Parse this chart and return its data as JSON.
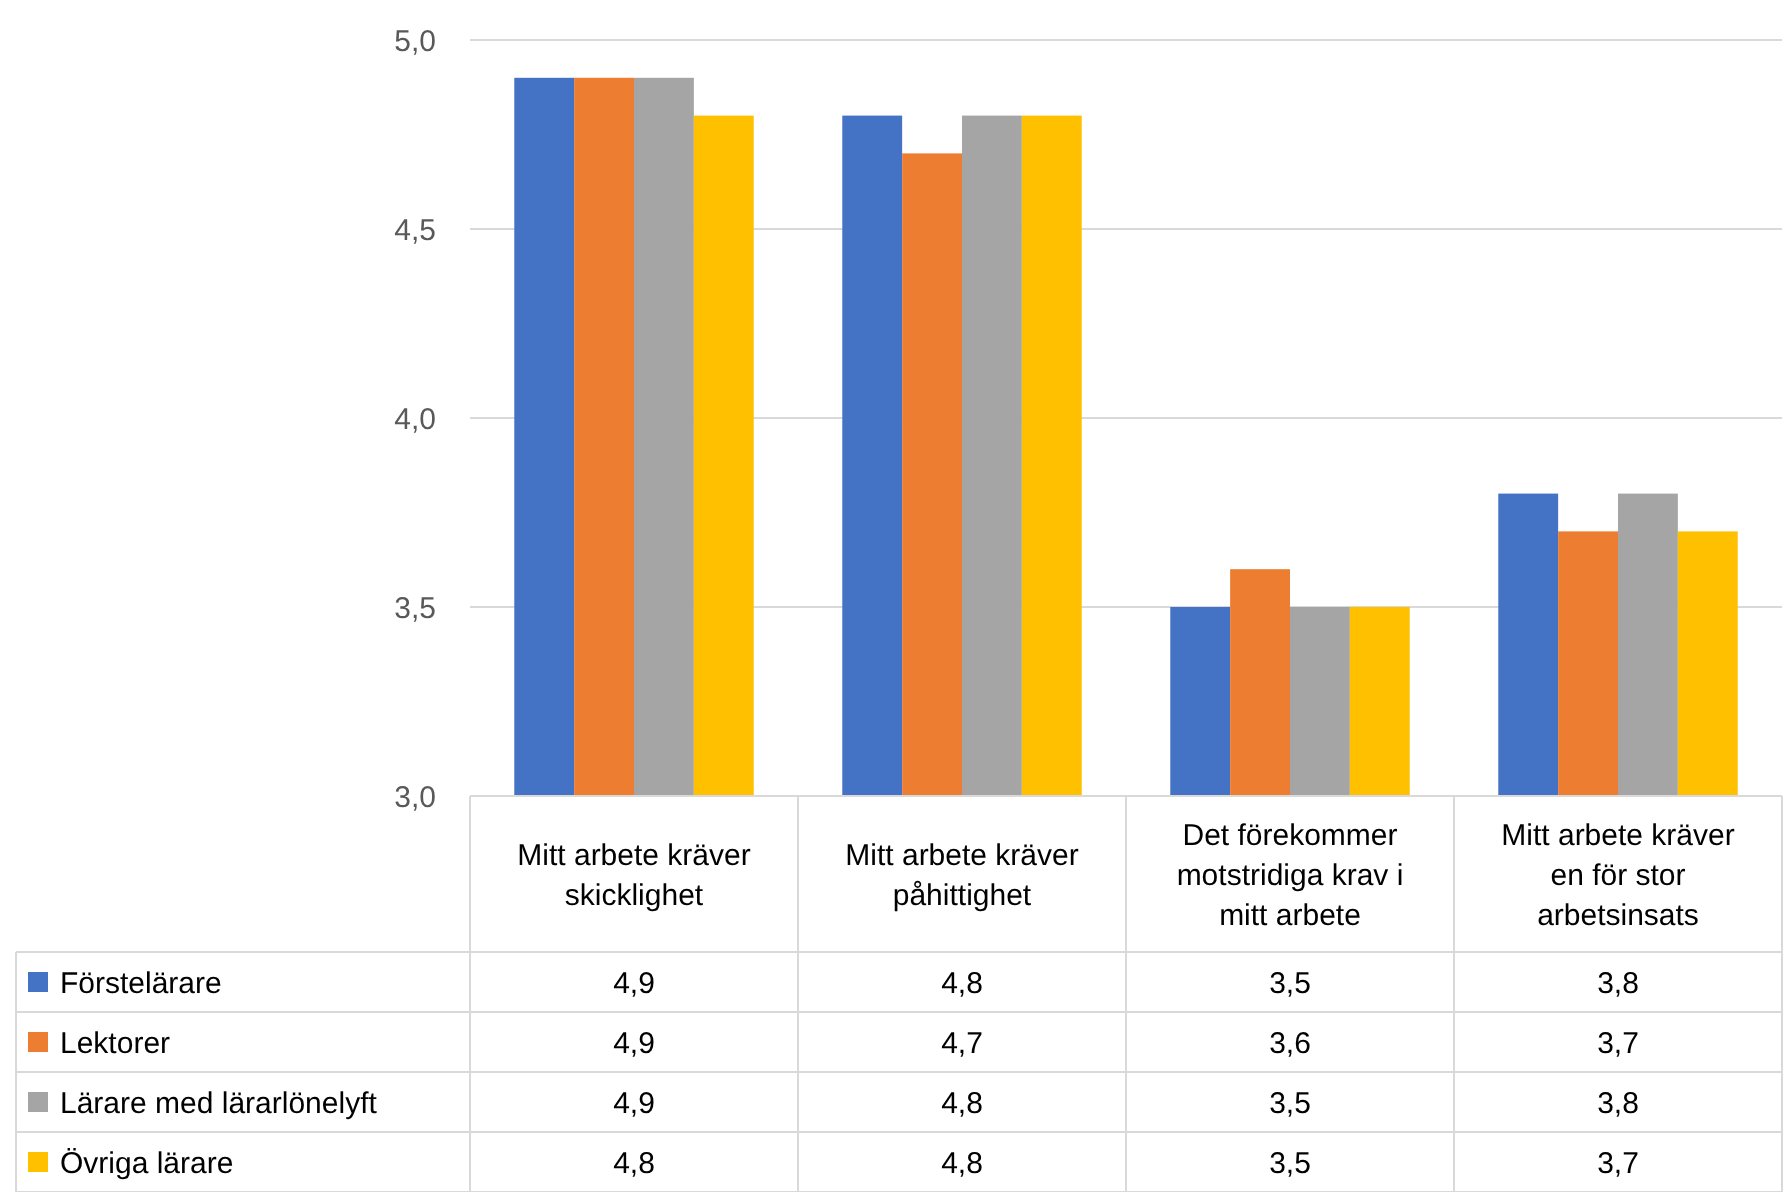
{
  "chart_data": {
    "type": "bar",
    "categories": [
      "Mitt arbete kräver skicklighet",
      "Mitt arbete kräver påhittighet",
      "Det förekommer motstridiga krav i mitt arbete",
      "Mitt arbete kräver en för stor arbetsinsats"
    ],
    "series": [
      {
        "name": "Förstelärare",
        "color": "#4472c4",
        "values": [
          4.9,
          4.8,
          3.5,
          3.8
        ],
        "value_labels": [
          "4,9",
          "4,8",
          "3,5",
          "3,8"
        ]
      },
      {
        "name": "Lektorer",
        "color": "#ed7d31",
        "values": [
          4.9,
          4.7,
          3.6,
          3.7
        ],
        "value_labels": [
          "4,9",
          "4,7",
          "3,6",
          "3,7"
        ]
      },
      {
        "name": "Lärare med lärarlönelyft",
        "color": "#a5a5a5",
        "values": [
          4.9,
          4.8,
          3.5,
          3.8
        ],
        "value_labels": [
          "4,9",
          "4,8",
          "3,5",
          "3,8"
        ]
      },
      {
        "name": "Övriga lärare",
        "color": "#ffc000",
        "values": [
          4.8,
          4.8,
          3.5,
          3.7
        ],
        "value_labels": [
          "4,8",
          "4,8",
          "3,5",
          "3,7"
        ]
      }
    ],
    "ylim": [
      3,
      5
    ],
    "yticks": [
      {
        "value": 3,
        "label": "3,0"
      },
      {
        "value": 3.5,
        "label": "3,5"
      },
      {
        "value": 4,
        "label": "4,0"
      },
      {
        "value": 4.5,
        "label": "4,5"
      },
      {
        "value": 5,
        "label": "5,0"
      }
    ],
    "grid": "y",
    "legend": "bottom"
  }
}
